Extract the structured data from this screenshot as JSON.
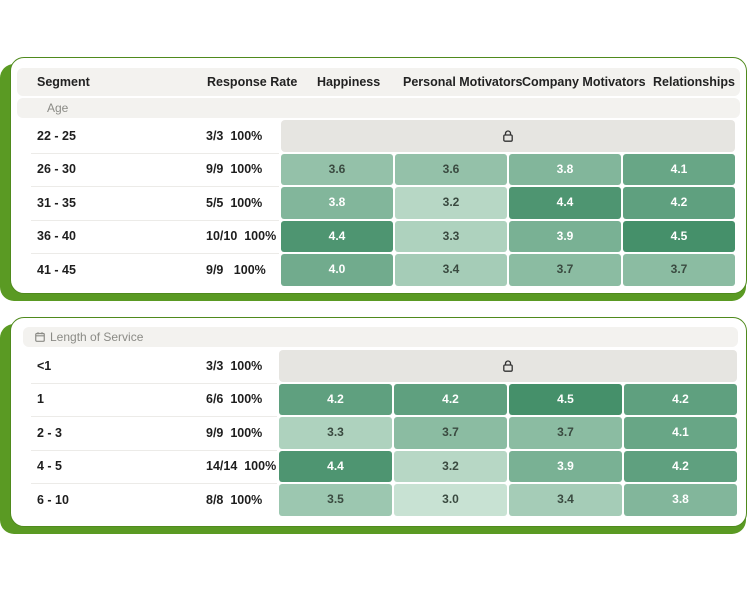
{
  "columns": {
    "segment": "Segment",
    "response_rate": "Response Rate",
    "happiness": "Happiness",
    "personal": "Personal Motivators",
    "company": "Company Motivators",
    "relationships": "Relationships"
  },
  "age": {
    "title": "Age",
    "rows": [
      {
        "segment": "22 - 25",
        "rate": "3/3  100%",
        "locked": true,
        "values": []
      },
      {
        "segment": "26 - 30",
        "rate": "9/9  100%",
        "locked": false,
        "values": [
          "3.6",
          "3.6",
          "3.8",
          "4.1"
        ]
      },
      {
        "segment": "31 - 35",
        "rate": "5/5  100%",
        "locked": false,
        "values": [
          "3.8",
          "3.2",
          "4.4",
          "4.2"
        ]
      },
      {
        "segment": "36 - 40",
        "rate": "10/10  100%",
        "locked": false,
        "values": [
          "4.4",
          "3.3",
          "3.9",
          "4.5"
        ]
      },
      {
        "segment": "41 - 45",
        "rate": "9/9   100%",
        "locked": false,
        "values": [
          "4.0",
          "3.4",
          "3.7",
          "3.7"
        ]
      }
    ]
  },
  "service": {
    "title": "Length of Service",
    "rows": [
      {
        "segment": "<1",
        "rate": "3/3  100%",
        "locked": true,
        "values": []
      },
      {
        "segment": "1",
        "rate": "6/6  100%",
        "locked": false,
        "values": [
          "4.2",
          "4.2",
          "4.5",
          "4.2"
        ]
      },
      {
        "segment": "2 - 3",
        "rate": "9/9  100%",
        "locked": false,
        "values": [
          "3.3",
          "3.7",
          "3.7",
          "4.1"
        ]
      },
      {
        "segment": "4 - 5",
        "rate": "14/14  100%",
        "locked": false,
        "values": [
          "4.4",
          "3.2",
          "3.9",
          "4.2"
        ]
      },
      {
        "segment": "6 - 10",
        "rate": "8/8  100%",
        "locked": false,
        "values": [
          "3.5",
          "3.0",
          "3.4",
          "3.8"
        ]
      }
    ]
  },
  "icons": {
    "lock": "lock-icon",
    "section": "calendar-icon"
  },
  "colors": {
    "accent": "#5a9a23",
    "heat_high": "#45906a",
    "heat_low": "#c6e0d2",
    "locked_bg": "#e6e5e1"
  }
}
